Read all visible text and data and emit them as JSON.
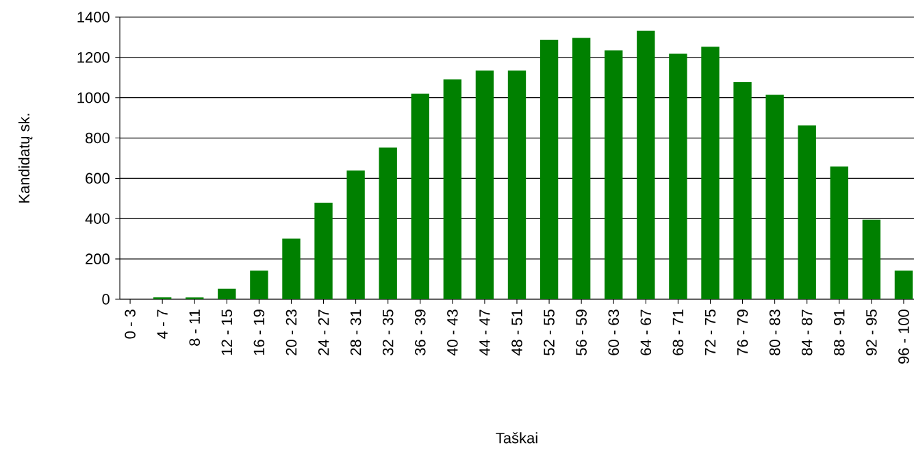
{
  "chart_data": {
    "type": "bar",
    "xlabel": "Taškai",
    "ylabel": "Kandidatų sk.",
    "categories": [
      "0 - 3",
      "4 - 7",
      "8 - 11",
      "12 - 15",
      "16 - 19",
      "20 - 23",
      "24 - 27",
      "28 - 31",
      "32 - 35",
      "36 - 39",
      "40 - 43",
      "44 - 47",
      "48 - 51",
      "52 - 55",
      "56 - 59",
      "60 - 63",
      "64 - 67",
      "68 - 71",
      "72 - 75",
      "76 - 79",
      "80 - 83",
      "84 - 87",
      "88 - 91",
      "92 - 95",
      "96 - 100"
    ],
    "values": [
      0,
      9,
      9,
      52,
      142,
      301,
      479,
      639,
      753,
      1020,
      1091,
      1135,
      1135,
      1288,
      1297,
      1235,
      1333,
      1218,
      1253,
      1077,
      1014,
      862,
      658,
      395,
      142
    ],
    "color": "#008000",
    "ylim": [
      0,
      1400
    ],
    "yticks": [
      0,
      200,
      400,
      600,
      800,
      1000,
      1200,
      1400
    ],
    "grid": "y"
  }
}
